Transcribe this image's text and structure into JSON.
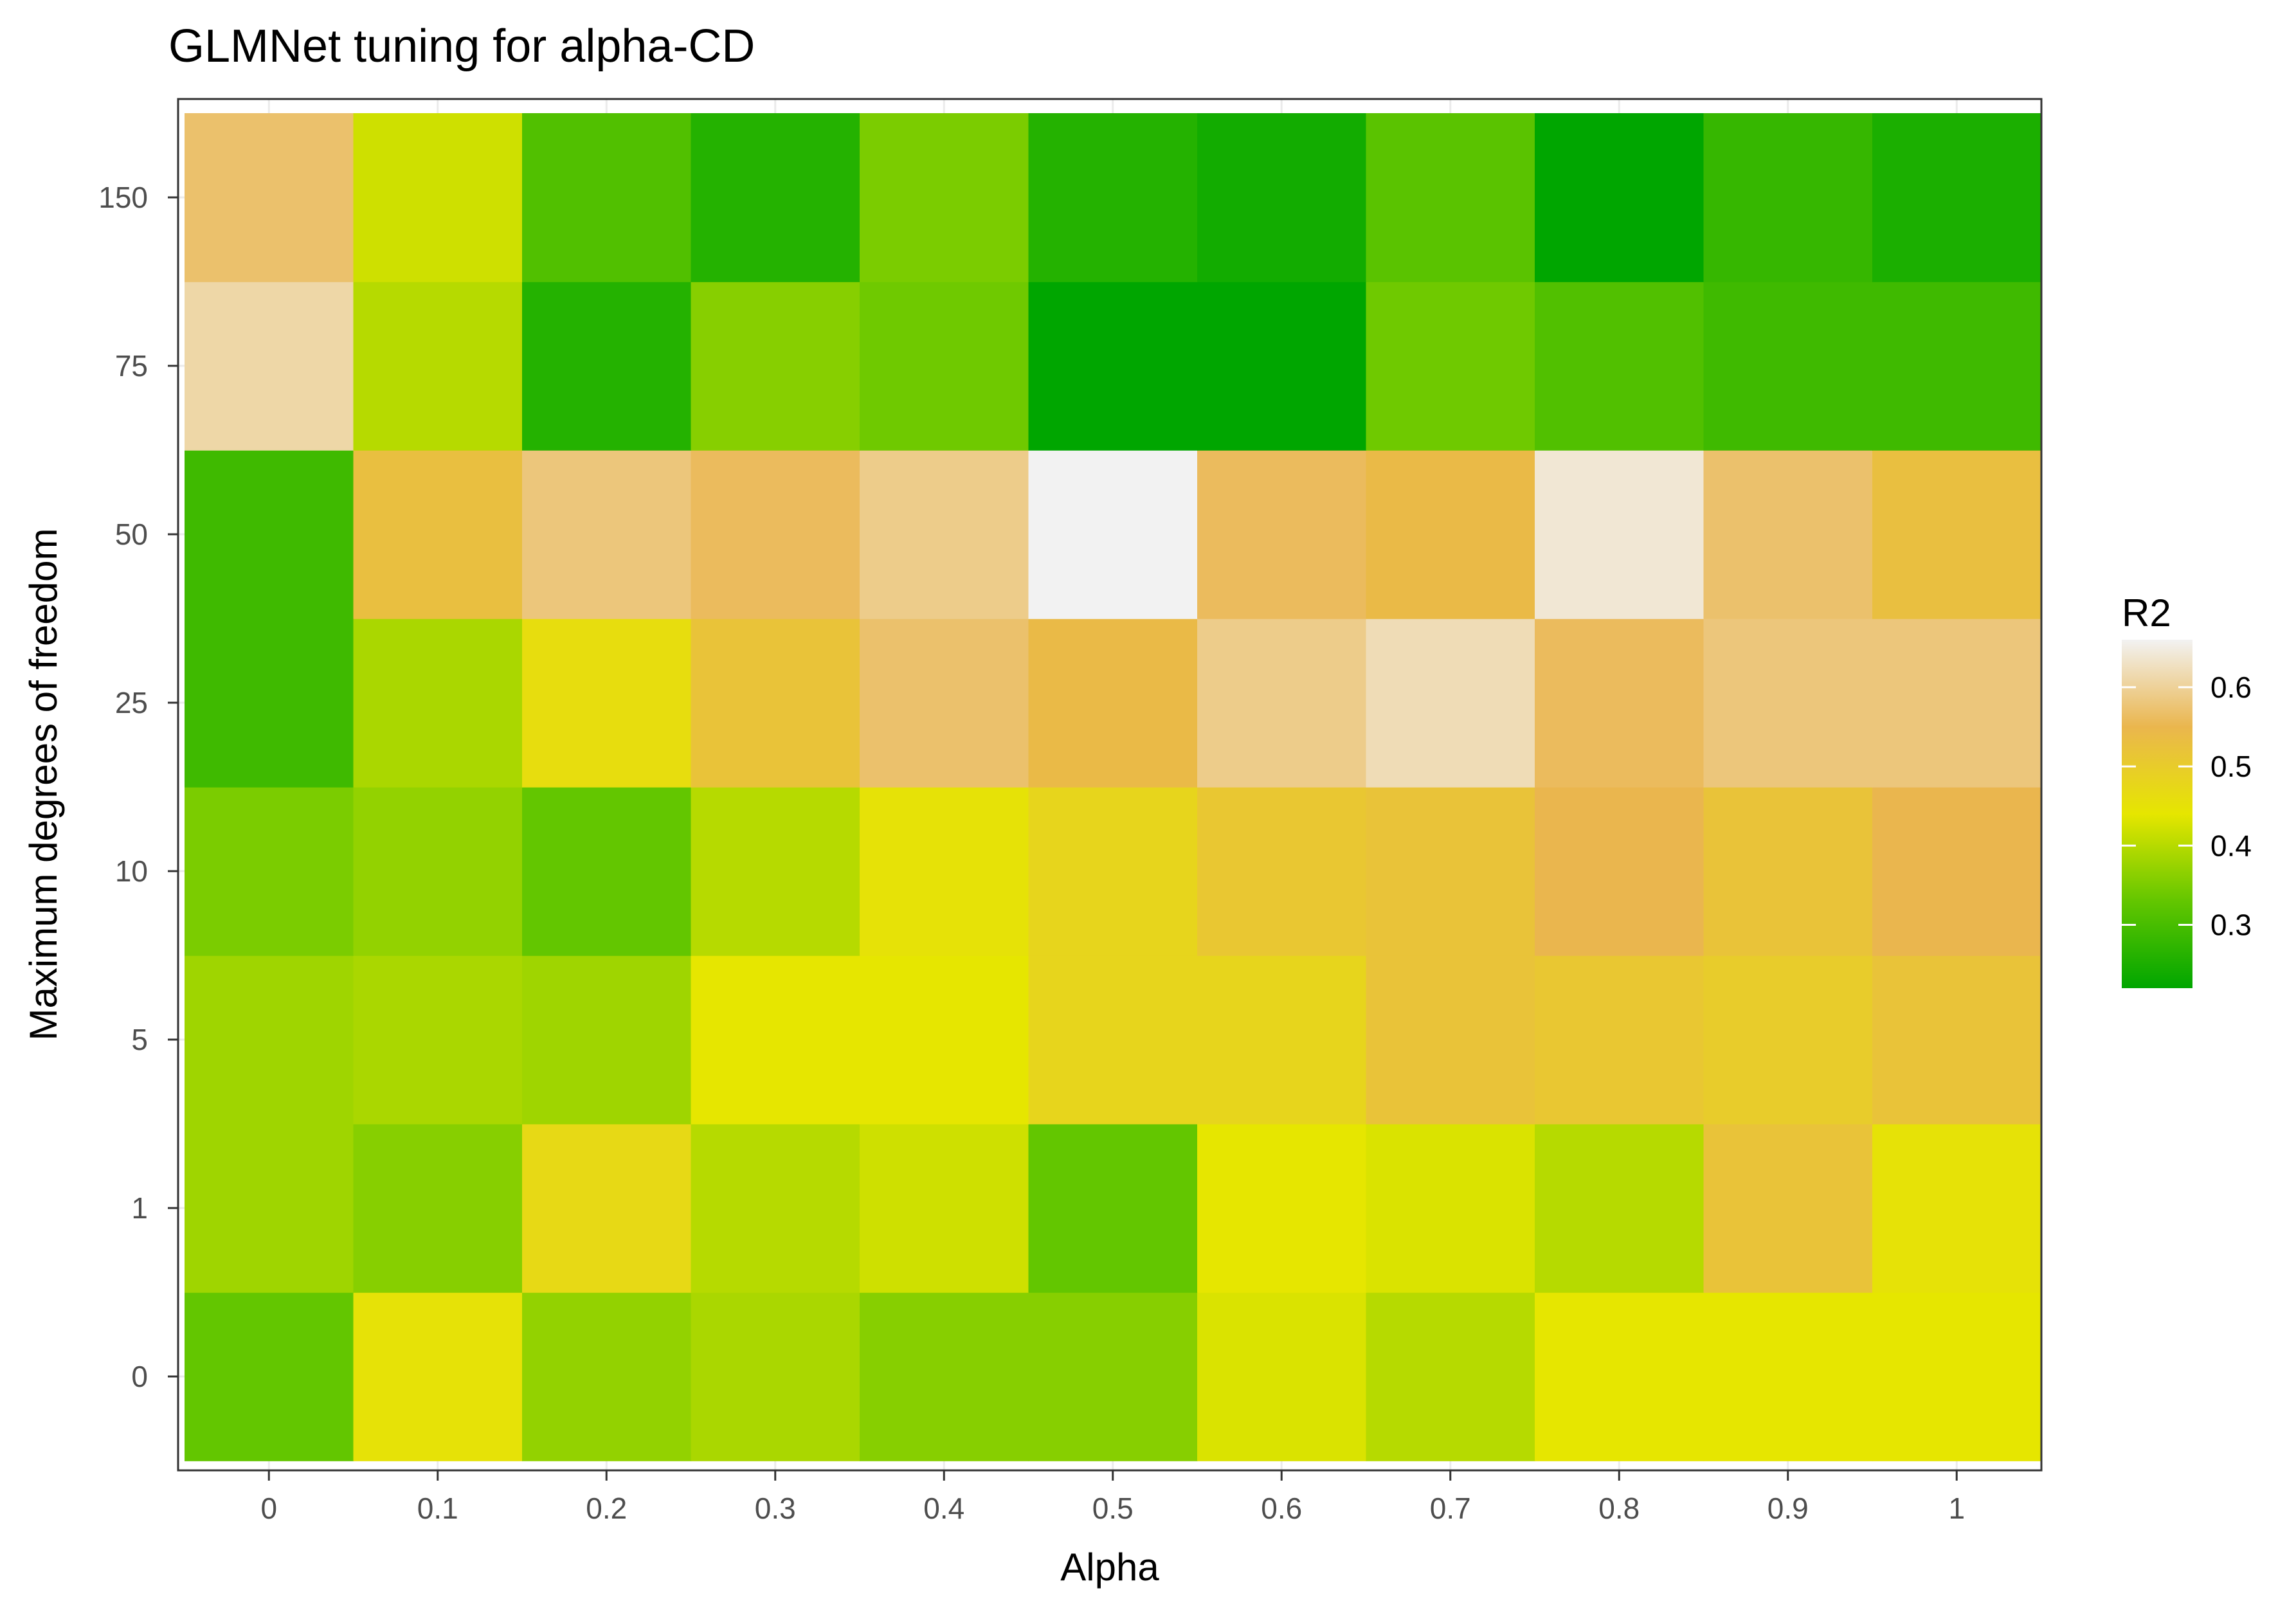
{
  "chart_data": {
    "type": "heatmap",
    "title": "GLMNet tuning for alpha-CD",
    "xlabel": "Alpha",
    "ylabel": "Maximum degrees of freedom",
    "x_categories": [
      "0",
      "0.1",
      "0.2",
      "0.3",
      "0.4",
      "0.5",
      "0.6",
      "0.7",
      "0.8",
      "0.9",
      "1"
    ],
    "y_categories": [
      "0",
      "1",
      "5",
      "10",
      "25",
      "50",
      "75",
      "150"
    ],
    "values": [
      [
        0.33,
        0.45,
        0.37,
        0.39,
        0.36,
        0.36,
        0.43,
        0.4,
        0.44,
        0.44,
        0.44
      ],
      [
        0.38,
        0.36,
        0.47,
        0.4,
        0.42,
        0.33,
        0.44,
        0.43,
        0.4,
        0.52,
        0.45
      ],
      [
        0.38,
        0.39,
        0.38,
        0.44,
        0.44,
        0.48,
        0.48,
        0.52,
        0.51,
        0.5,
        0.52
      ],
      [
        0.35,
        0.37,
        0.33,
        0.4,
        0.45,
        0.48,
        0.51,
        0.52,
        0.55,
        0.52,
        0.55
      ],
      [
        0.29,
        0.39,
        0.46,
        0.52,
        0.57,
        0.54,
        0.59,
        0.62,
        0.56,
        0.58,
        0.58
      ],
      [
        0.29,
        0.53,
        0.58,
        0.56,
        0.59,
        0.66,
        0.56,
        0.54,
        0.64,
        0.57,
        0.53
      ],
      [
        0.61,
        0.4,
        0.26,
        0.36,
        0.34,
        0.22,
        0.22,
        0.34,
        0.31,
        0.29,
        0.29
      ],
      [
        0.57,
        0.42,
        0.31,
        0.26,
        0.35,
        0.26,
        0.24,
        0.32,
        0.22,
        0.28,
        0.25
      ]
    ],
    "color_scale": {
      "name": "R2",
      "min": 0.22,
      "max": 0.66,
      "stops": [
        {
          "value": 0.22,
          "color": "#00A600"
        },
        {
          "value": 0.33,
          "color": "#63C600"
        },
        {
          "value": 0.44,
          "color": "#E6E600"
        },
        {
          "value": 0.55,
          "color": "#EAB64E"
        },
        {
          "value": 0.66,
          "color": "#F2F2F2"
        }
      ],
      "ticks": [
        "0.3",
        "0.4",
        "0.5",
        "0.6"
      ]
    },
    "legend_position": "right",
    "grid": true
  }
}
